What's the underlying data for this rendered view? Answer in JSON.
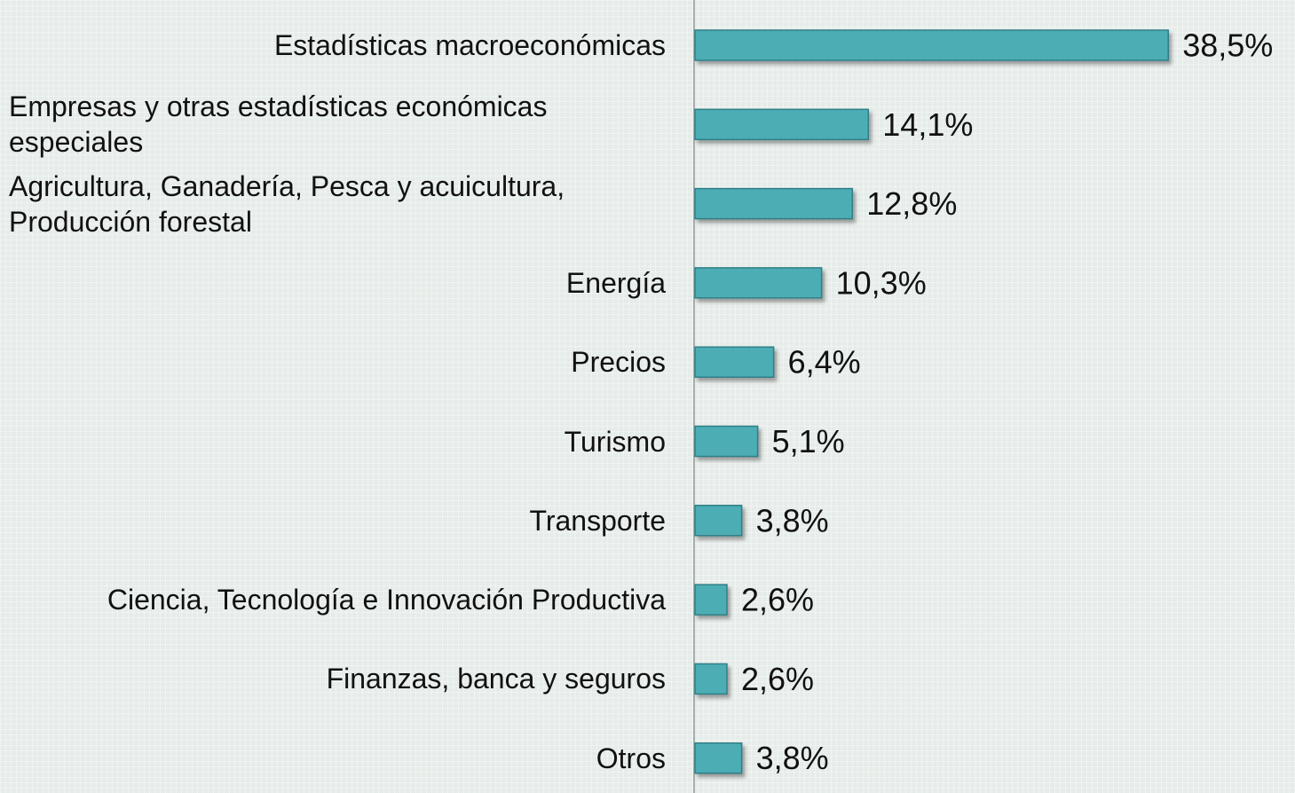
{
  "chart_data": {
    "type": "bar",
    "orientation": "horizontal",
    "categories": [
      "Estadísticas macroeconómicas",
      "Empresas y otras estadísticas económicas especiales",
      "Agricultura, Ganadería, Pesca y acuicultura, Producción forestal",
      "Energía",
      "Precios",
      "Turismo",
      "Transporte",
      "Ciencia, Tecnología e Innovación Productiva",
      "Finanzas, banca y seguros",
      "Otros"
    ],
    "values": [
      38.5,
      14.1,
      12.8,
      10.3,
      6.4,
      5.1,
      3.8,
      2.6,
      2.6,
      3.8
    ],
    "value_labels": [
      "38,5%",
      "14,1%",
      "12,8%",
      "10,3%",
      "6,4%",
      "5,1%",
      "3,8%",
      "2,6%",
      "2,6%",
      "3,8%"
    ],
    "color": "#4eadb5"
  }
}
